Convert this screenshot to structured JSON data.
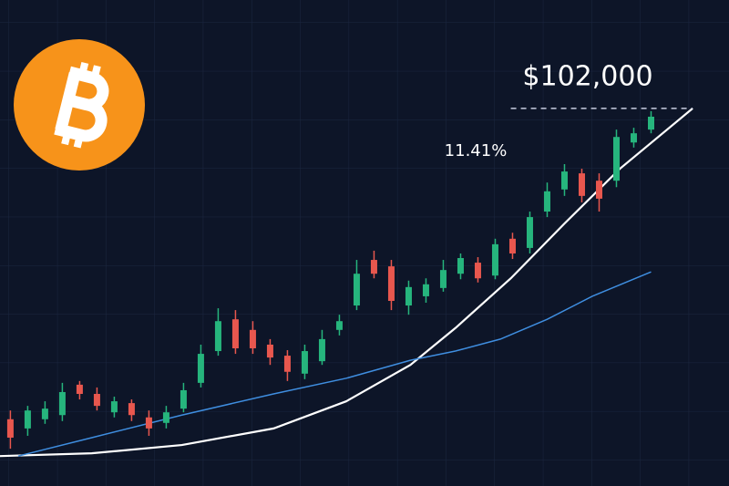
{
  "chart_data": {
    "type": "candlestick",
    "up_color": "#26b57d",
    "down_color": "#e8574e",
    "xlim": [
      -0.6,
      41.5
    ],
    "ylim": [
      20000,
      120000
    ],
    "open": [
      34500,
      32500,
      34500,
      35400,
      42000,
      40000,
      36000,
      38000,
      34900,
      33700,
      36800,
      42400,
      49300,
      56200,
      53900,
      50700,
      48300,
      44400,
      47100,
      53900,
      59200,
      69100,
      67700,
      59200,
      61200,
      63000,
      66100,
      68500,
      65700,
      73700,
      71700,
      79600,
      84400,
      87900,
      86300,
      86300,
      94600,
      97400
    ],
    "high": [
      36400,
      37400,
      38400,
      42400,
      42800,
      41400,
      39400,
      38800,
      36400,
      37400,
      42400,
      50700,
      58600,
      58200,
      55800,
      51900,
      49500,
      50700,
      53900,
      57200,
      69100,
      71100,
      69100,
      64600,
      65100,
      69100,
      70500,
      69700,
      73700,
      75000,
      79600,
      85900,
      89900,
      88900,
      87900,
      97400,
      97800,
      101400
    ],
    "low": [
      28100,
      30900,
      33500,
      34100,
      38800,
      36400,
      34900,
      34100,
      30900,
      32500,
      36000,
      41400,
      48300,
      48700,
      48700,
      46300,
      42800,
      43200,
      46300,
      52700,
      58200,
      65100,
      58200,
      57200,
      59800,
      62200,
      64900,
      64200,
      64900,
      69300,
      70500,
      78400,
      83000,
      81600,
      79600,
      84900,
      93500,
      96600
    ],
    "close": [
      30500,
      36400,
      36800,
      40400,
      40000,
      37400,
      38400,
      35400,
      32500,
      36000,
      40800,
      48700,
      55800,
      49900,
      49900,
      47900,
      44800,
      49300,
      51900,
      55800,
      66100,
      66100,
      60200,
      63200,
      63800,
      66900,
      69500,
      65100,
      72500,
      70500,
      78400,
      84000,
      88300,
      83000,
      82400,
      95800,
      96600,
      100200
    ],
    "lines": [
      {
        "color": "#ffffff",
        "x": [
          -0.6,
          4.7,
          9.9,
          15.2,
          19.4,
          23.1,
          25.7,
          28.9,
          32.0,
          35.2,
          39.4
        ],
        "values": [
          26500,
          27100,
          28900,
          32500,
          38400,
          46300,
          54300,
          65100,
          77000,
          88900,
          102000
        ]
      },
      {
        "color": "#3f8ee0",
        "x": [
          0.45,
          4.7,
          9.9,
          15.2,
          19.4,
          23.1,
          25.7,
          28.3,
          31.0,
          33.6,
          37.0
        ],
        "values": [
          26500,
          30500,
          35400,
          40000,
          43400,
          47300,
          49300,
          51900,
          56200,
          61200,
          66500
        ]
      }
    ],
    "price_level": {
      "value": 102000,
      "label": "$102,000",
      "x": [
        28.9,
        39.4
      ]
    },
    "change": {
      "value": 11.41,
      "label": "11.41%"
    }
  }
}
